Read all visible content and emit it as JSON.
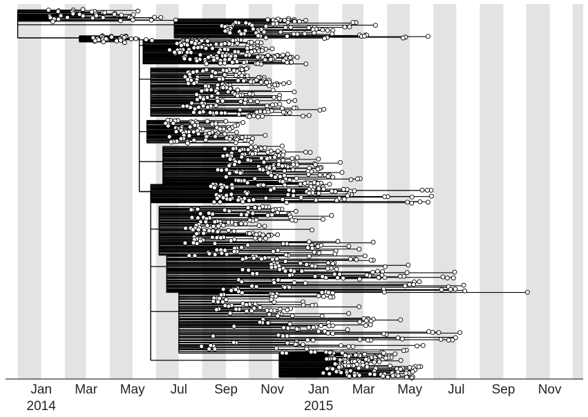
{
  "chart_data": {
    "type": "phylogenetic-tree",
    "title": "",
    "xlabel": "",
    "ylabel": "",
    "x_axis": {
      "start": "2013-11-15",
      "end": "2015-12-15",
      "tick_labels": [
        {
          "label": "Jan",
          "date": "2014-01-01"
        },
        {
          "label": "Mar",
          "date": "2014-03-01"
        },
        {
          "label": "May",
          "date": "2014-05-01"
        },
        {
          "label": "Jul",
          "date": "2014-07-01"
        },
        {
          "label": "Sep",
          "date": "2014-09-01"
        },
        {
          "label": "Nov",
          "date": "2014-11-01"
        },
        {
          "label": "Jan",
          "date": "2015-01-01"
        },
        {
          "label": "Mar",
          "date": "2015-03-01"
        },
        {
          "label": "May",
          "date": "2015-05-01"
        },
        {
          "label": "Jul",
          "date": "2015-07-01"
        },
        {
          "label": "Sep",
          "date": "2015-09-01"
        },
        {
          "label": "Nov",
          "date": "2015-11-01"
        }
      ],
      "year_labels": [
        {
          "label": "2014",
          "date": "2014-01-01"
        },
        {
          "label": "2015",
          "date": "2015-01-01"
        }
      ]
    },
    "month_shading": "alternating grey bands, one per month",
    "grid": false,
    "legend": "none",
    "colors": {
      "band": "#e3e3e3",
      "branch": "#000000",
      "tip_fill": "#ffffff",
      "tip_stroke": "#000000"
    },
    "clades": [
      {
        "name": "",
        "root": "2013-12-01",
        "root_row": 0.03,
        "tips_from": "2014-01-10",
        "tips_to": "2014-08-15",
        "rows": [
          0.015,
          0.045
        ],
        "density": 0.3
      },
      {
        "name": "",
        "root": "2014-06-25",
        "root_row": 0.055,
        "tips_from": "2014-09-01",
        "tips_to": "2015-06-01",
        "rows": [
          0.04,
          0.09
        ],
        "density": 0.5
      },
      {
        "name": "",
        "root": "2014-02-20",
        "root_row": 0.09,
        "tips_from": "2014-03-10",
        "tips_to": "2014-06-10",
        "rows": [
          0.085,
          0.1
        ],
        "density": 0.2
      },
      {
        "name": "",
        "root": "2014-05-15",
        "root_row": 0.11,
        "tips_from": "2014-07-01",
        "tips_to": "2015-01-10",
        "rows": [
          0.095,
          0.16
        ],
        "density": 0.9
      },
      {
        "name": "",
        "root": "2014-05-25",
        "root_row": 0.2,
        "tips_from": "2014-07-15",
        "tips_to": "2015-01-15",
        "rows": [
          0.17,
          0.3
        ],
        "density": 1.0
      },
      {
        "name": "",
        "root": "2014-05-20",
        "root_row": 0.34,
        "tips_from": "2014-06-15",
        "tips_to": "2014-11-10",
        "rows": [
          0.31,
          0.37
        ],
        "density": 0.6
      },
      {
        "name": "",
        "root": "2014-06-10",
        "root_row": 0.42,
        "tips_from": "2014-09-01",
        "tips_to": "2015-03-10",
        "rows": [
          0.38,
          0.48
        ],
        "density": 0.8
      },
      {
        "name": "",
        "root": "2014-05-25",
        "root_row": 0.5,
        "tips_from": "2014-08-15",
        "tips_to": "2015-08-15",
        "rows": [
          0.48,
          0.53
        ],
        "density": 0.6
      },
      {
        "name": "",
        "root": "2014-06-05",
        "root_row": 0.6,
        "tips_from": "2014-07-15",
        "tips_to": "2015-03-20",
        "rows": [
          0.54,
          0.67
        ],
        "density": 0.9
      },
      {
        "name": "",
        "root": "2014-06-15",
        "root_row": 0.7,
        "tips_from": "2014-09-15",
        "tips_to": "2015-10-05",
        "rows": [
          0.67,
          0.77
        ],
        "density": 0.7
      },
      {
        "name": "",
        "root": "2014-07-01",
        "root_row": 0.82,
        "tips_from": "2014-08-15",
        "tips_to": "2015-08-01",
        "rows": [
          0.76,
          0.93
        ],
        "density": 0.9
      },
      {
        "name": "",
        "root": "2014-11-10",
        "root_row": 0.95,
        "tips_from": "2015-01-15",
        "tips_to": "2015-06-01",
        "rows": [
          0.93,
          0.995
        ],
        "density": 0.8
      }
    ]
  }
}
